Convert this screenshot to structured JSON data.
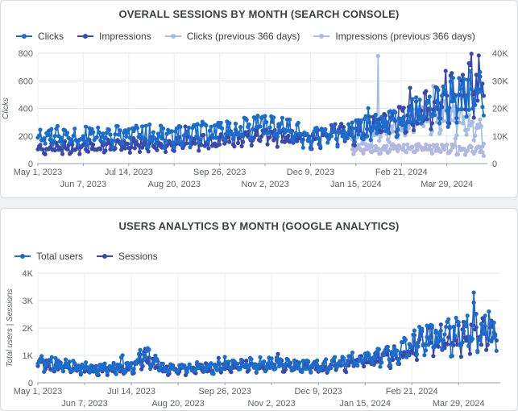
{
  "chart_data": [
    {
      "type": "line",
      "title": "OVERALL SESSIONS BY MONTH (SEARCH CONSOLE)",
      "xlabel": "",
      "ylabel": "Clicks",
      "y2label": "",
      "x_range": [
        "2023-05-01",
        "2024-05-01"
      ],
      "ylim": [
        0,
        800
      ],
      "y2lim": [
        0,
        40000
      ],
      "y_ticks": [
        "0",
        "200",
        "400",
        "600",
        "800"
      ],
      "y2_ticks": [
        "0",
        "10K",
        "20K",
        "30K",
        "40K"
      ],
      "x_ticks_row1": [
        "May 1, 2023",
        "Jul 14, 2023",
        "Sep 26, 2023",
        "Dec 9, 2023",
        "Feb 21, 2024"
      ],
      "x_ticks_row2": [
        "Jun 7, 2023",
        "Aug 20, 2023",
        "Nov 2, 2023",
        "Jan 15, 2024",
        "Mar 29, 2024"
      ],
      "grid": true,
      "legend_position": "top-left",
      "series": [
        {
          "name": "Clicks",
          "axis": "left",
          "color": "#1a6dcc",
          "keypoints": [
            [
              "2023-05-01",
              220
            ],
            [
              "2023-06-15",
              210
            ],
            [
              "2023-07-20",
              230
            ],
            [
              "2023-08-20",
              210
            ],
            [
              "2023-09-26",
              240
            ],
            [
              "2023-10-26",
              300
            ],
            [
              "2023-11-10",
              290
            ],
            [
              "2023-12-09",
              200
            ],
            [
              "2024-01-15",
              250
            ],
            [
              "2024-02-21",
              330
            ],
            [
              "2024-03-29",
              480
            ],
            [
              "2024-04-28",
              560
            ]
          ]
        },
        {
          "name": "Impressions",
          "axis": "right",
          "color": "#3949ab",
          "keypoints": [
            [
              "2023-05-01",
              6000
            ],
            [
              "2023-06-15",
              6800
            ],
            [
              "2023-07-20",
              7500
            ],
            [
              "2023-08-20",
              7800
            ],
            [
              "2023-09-26",
              9000
            ],
            [
              "2023-10-26",
              11500
            ],
            [
              "2023-11-10",
              11000
            ],
            [
              "2023-12-09",
              10000
            ],
            [
              "2024-01-15",
              12500
            ],
            [
              "2024-02-21",
              17000
            ],
            [
              "2024-03-29",
              25000
            ],
            [
              "2024-04-28",
              32000
            ]
          ]
        },
        {
          "name": "Clicks (previous 366 days)",
          "axis": "left",
          "color": "#a4bce8",
          "keypoints": [
            [
              "2024-01-12",
              200
            ],
            [
              "2024-02-01",
              230
            ],
            [
              "2024-03-01",
              330
            ],
            [
              "2024-04-01",
              400
            ],
            [
              "2024-04-28",
              210
            ]
          ]
        },
        {
          "name": "Impressions (previous 366 days)",
          "axis": "right",
          "color": "#b3b8e0",
          "keypoints": [
            [
              "2024-01-12",
              5800
            ],
            [
              "2024-02-21",
              6300
            ],
            [
              "2024-03-29",
              5800
            ],
            [
              "2024-04-28",
              5000
            ]
          ]
        }
      ]
    },
    {
      "type": "line",
      "title": "USERS ANALYTICS BY MONTH (GOOGLE ANALYTICS)",
      "xlabel": "",
      "ylabel": "Total users | Sessions",
      "x_range": [
        "2023-05-01",
        "2024-05-01"
      ],
      "ylim": [
        0,
        4000
      ],
      "y_ticks": [
        "0",
        "1K",
        "2K",
        "3K",
        "4K"
      ],
      "x_ticks_row1": [
        "May 1, 2023",
        "Jul 14, 2023",
        "Sep 26, 2023",
        "Dec 9, 2023",
        "Feb 21, 2024"
      ],
      "x_ticks_row2": [
        "Jun 7, 2023",
        "Aug 20, 2023",
        "Nov 2, 2023",
        "Jan 15, 2024",
        "Mar 29, 2024"
      ],
      "grid": true,
      "legend_position": "top-left",
      "series": [
        {
          "name": "Total users",
          "color": "#1a6dcc",
          "keypoints": [
            [
              "2023-05-01",
              800
            ],
            [
              "2023-06-15",
              550
            ],
            [
              "2023-07-14",
              650
            ],
            [
              "2023-07-24",
              1100
            ],
            [
              "2023-08-10",
              550
            ],
            [
              "2023-09-26",
              650
            ],
            [
              "2023-10-26",
              750
            ],
            [
              "2023-12-09",
              650
            ],
            [
              "2024-01-15",
              900
            ],
            [
              "2024-02-10",
              1200
            ],
            [
              "2024-03-01",
              1700
            ],
            [
              "2024-04-01",
              1900
            ],
            [
              "2024-04-28",
              2100
            ]
          ]
        },
        {
          "name": "Sessions",
          "color": "#3949ab",
          "keypoints": [
            [
              "2023-05-01",
              700
            ],
            [
              "2023-06-15",
              500
            ],
            [
              "2023-07-14",
              600
            ],
            [
              "2023-07-24",
              950
            ],
            [
              "2023-08-10",
              500
            ],
            [
              "2023-09-26",
              600
            ],
            [
              "2023-10-26",
              700
            ],
            [
              "2023-12-09",
              600
            ],
            [
              "2024-01-15",
              800
            ],
            [
              "2024-02-10",
              1100
            ],
            [
              "2024-03-01",
              1600
            ],
            [
              "2024-04-01",
              1800
            ],
            [
              "2024-04-28",
              2000
            ]
          ]
        }
      ]
    }
  ]
}
